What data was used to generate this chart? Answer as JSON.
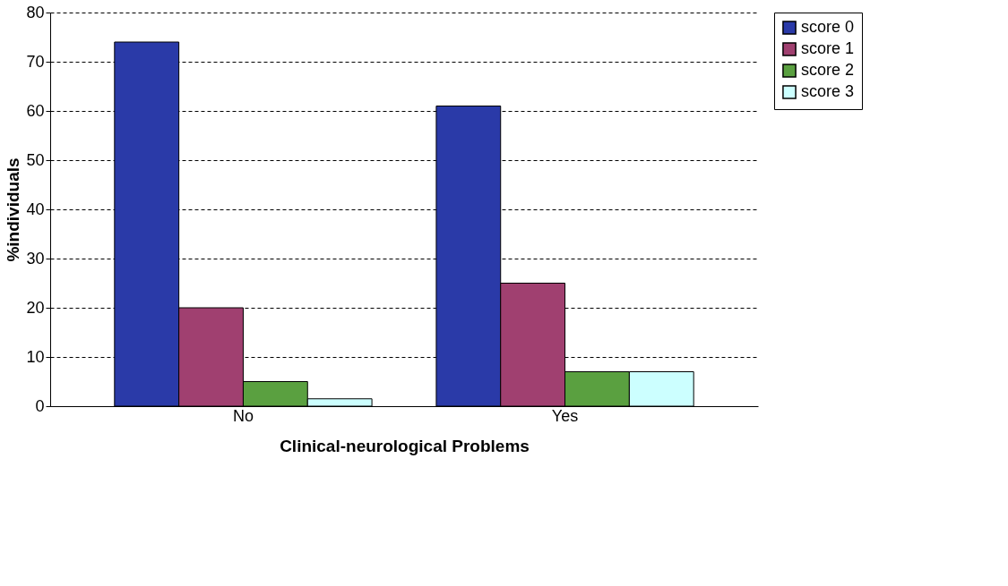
{
  "chart_data": {
    "type": "bar",
    "xlabel": "Clinical-neurological Problems",
    "ylabel": "%individuals",
    "categories": [
      "No",
      "Yes"
    ],
    "series": [
      {
        "name": "score 0",
        "color": "#2a3aa8",
        "values": [
          74,
          61
        ]
      },
      {
        "name": "score 1",
        "color": "#a04070",
        "values": [
          20,
          25
        ]
      },
      {
        "name": "score 2",
        "color": "#5aa040",
        "values": [
          5,
          7
        ]
      },
      {
        "name": "score 3",
        "color": "#ccffff",
        "values": [
          1.5,
          7
        ]
      }
    ],
    "ylim": [
      0,
      80
    ],
    "yticks": [
      0,
      10,
      20,
      30,
      40,
      50,
      60,
      70,
      80
    ],
    "grid": "y",
    "legend": "right"
  }
}
